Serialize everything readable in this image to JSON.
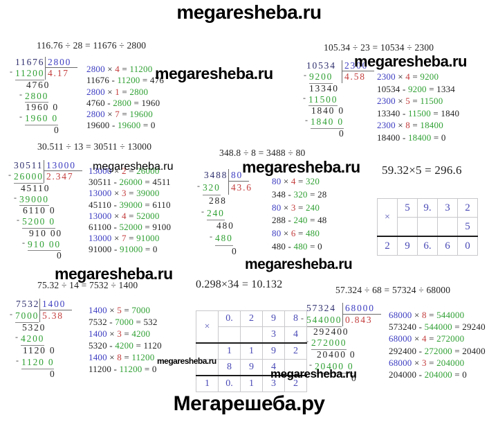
{
  "titles": {
    "top": "megaresheba.ru",
    "bottom": "Мегарешеба.ру"
  },
  "mult_sign": "×",
  "colors": {
    "dividend": "#2e2e6e",
    "divisor_blue": "#3c3cc2",
    "quotient_red": "#c43c3c",
    "step_green": "#2fa033",
    "text_black": "#222222",
    "grid_digit_blue": "#4848b6",
    "grid_border": "#c8c8cc",
    "bracket_line": "#6a6a6a"
  },
  "divisions": [
    {
      "id": "p1",
      "name": "division-116.76-by-28",
      "equation": "116.76 ÷ 28 = 11676 ÷ 2800",
      "dividend": "11676",
      "divisor": "2800",
      "sub1": "11200",
      "quotient": "4.17",
      "dml": 14,
      "mml": 6,
      "rows": [
        {
          "t": "4760",
          "ml": 30
        },
        {
          "t": "2800",
          "m": 1,
          "g": 1,
          "u": 1,
          "ml": 20
        },
        {
          "t": "1960 0",
          "ml": 29
        },
        {
          "t": "1960 0",
          "m": 1,
          "g": 1,
          "u": 1,
          "ml": 20
        },
        {
          "t": "0",
          "ml": 70
        }
      ],
      "notes": [
        {
          "k": "m",
          "a": "2800",
          "b": "4",
          "c": "11200"
        },
        {
          "k": "s",
          "a": "11676",
          "b": "11200",
          "c": "476"
        },
        {
          "k": "m",
          "a": "2800",
          "b": "1",
          "c": "2800"
        },
        {
          "k": "s",
          "a": "4760",
          "b": "2800",
          "c": "1960"
        },
        {
          "k": "m",
          "a": "2800",
          "b": "7",
          "c": "19600"
        },
        {
          "k": "s",
          "a": "19600",
          "b": "19600",
          "c": "0"
        }
      ]
    },
    {
      "id": "p2",
      "name": "division-105.34-by-23",
      "equation": "105.34 ÷ 23 = 10534 ÷ 2300",
      "dividend": "10534",
      "divisor": "2300",
      "sub1": "9200",
      "quotient": "4.58",
      "dml": 8,
      "mml": 4,
      "rows": [
        {
          "t": "13340",
          "ml": 12
        },
        {
          "t": "11500",
          "m": 1,
          "g": 1,
          "u": 1,
          "ml": 3
        },
        {
          "t": "1840 0",
          "ml": 15
        },
        {
          "t": "1840 0",
          "m": 1,
          "g": 1,
          "u": 1,
          "ml": 6
        },
        {
          "t": "0",
          "ml": 55
        }
      ],
      "notes": [
        {
          "k": "m",
          "a": "2300",
          "b": "4",
          "c": "9200"
        },
        {
          "k": "s",
          "a": "10534",
          "b": "9200",
          "c": "1334"
        },
        {
          "k": "m",
          "a": "2300",
          "b": "5",
          "c": "11500"
        },
        {
          "k": "s",
          "a": "13340",
          "b": "11500",
          "c": "1840"
        },
        {
          "k": "m",
          "a": "2300",
          "b": "8",
          "c": "18400"
        },
        {
          "k": "s",
          "a": "18400",
          "b": "18400",
          "c": "0"
        }
      ]
    },
    {
      "id": "p3",
      "name": "division-30.511-by-13",
      "equation": "30.511 ÷ 13 = 30511 ÷ 13000",
      "dividend": "30511",
      "divisor": "13000",
      "sub1": "26000",
      "quotient": "2.347",
      "dml": 12,
      "mml": 4,
      "rows": [
        {
          "t": "45110",
          "ml": 22
        },
        {
          "t": "39000",
          "m": 1,
          "g": 1,
          "u": 1,
          "ml": 12
        },
        {
          "t": "6110 0",
          "ml": 25
        },
        {
          "t": "5200 0",
          "m": 1,
          "g": 1,
          "u": 1,
          "ml": 16
        },
        {
          "t": "910 00",
          "ml": 34
        },
        {
          "t": "910 00",
          "m": 1,
          "g": 1,
          "u": 1,
          "ml": 24
        },
        {
          "t": "0",
          "ml": 74
        }
      ],
      "notes": [
        {
          "k": "m",
          "a": "13000",
          "b": "2",
          "c": "26000"
        },
        {
          "k": "s",
          "a": "30511",
          "b": "26000",
          "c": "4511"
        },
        {
          "k": "m",
          "a": "13000",
          "b": "3",
          "c": "39000"
        },
        {
          "k": "s",
          "a": "45110",
          "b": "39000",
          "c": "6110"
        },
        {
          "k": "m",
          "a": "13000",
          "b": "4",
          "c": "52000"
        },
        {
          "k": "s",
          "a": "61100",
          "b": "52000",
          "c": "9100"
        },
        {
          "k": "m",
          "a": "13000",
          "b": "7",
          "c": "91000"
        },
        {
          "k": "s",
          "a": "91000",
          "b": "91000",
          "c": "0"
        }
      ]
    },
    {
      "id": "p4",
      "name": "division-348.8-by-8",
      "equation": "348.8 ÷ 8 = 3488 ÷ 80",
      "dividend": "3488",
      "divisor": "80",
      "sub1": "320",
      "quotient": "43.6",
      "dml": 20,
      "mml": 10,
      "rows": [
        {
          "t": "288",
          "ml": 27
        },
        {
          "t": "240",
          "m": 1,
          "g": 1,
          "u": 1,
          "ml": 16
        },
        {
          "t": "480",
          "ml": 38
        },
        {
          "t": "480",
          "m": 1,
          "g": 1,
          "u": 1,
          "ml": 28
        },
        {
          "t": "0",
          "ml": 60
        }
      ],
      "notes": [
        {
          "k": "m",
          "a": "80",
          "b": "4",
          "c": "320"
        },
        {
          "k": "s",
          "a": "348",
          "b": "320",
          "c": "28"
        },
        {
          "k": "m",
          "a": "80",
          "b": "3",
          "c": "240"
        },
        {
          "k": "s",
          "a": "288",
          "b": "240",
          "c": "48"
        },
        {
          "k": "m",
          "a": "80",
          "b": "6",
          "c": "480"
        },
        {
          "k": "s",
          "a": "480",
          "b": "480",
          "c": "0"
        }
      ]
    },
    {
      "id": "p6",
      "name": "division-75.32-by-14",
      "equation": "75.32 ÷ 14 = 7532 ÷ 1400",
      "dividend": "7532",
      "divisor": "1400",
      "sub1": "7000",
      "quotient": "5.38",
      "dml": 15,
      "mml": 6,
      "rows": [
        {
          "t": "5320",
          "ml": 24
        },
        {
          "t": "4200",
          "m": 1,
          "g": 1,
          "u": 1,
          "ml": 14
        },
        {
          "t": "1120 0",
          "ml": 25
        },
        {
          "t": "1120 0",
          "m": 1,
          "g": 1,
          "u": 1,
          "ml": 15
        },
        {
          "t": "0",
          "ml": 64
        }
      ],
      "notes": [
        {
          "k": "m",
          "a": "1400",
          "b": "5",
          "c": "7000"
        },
        {
          "k": "s",
          "a": "7532",
          "b": "7000",
          "c": "532"
        },
        {
          "k": "m",
          "a": "1400",
          "b": "3",
          "c": "4200"
        },
        {
          "k": "s",
          "a": "5320",
          "b": "4200",
          "c": "1120"
        },
        {
          "k": "m",
          "a": "1400",
          "b": "8",
          "c": "11200"
        },
        {
          "k": "s",
          "a": "11200",
          "b": "11200",
          "c": "0"
        }
      ]
    },
    {
      "id": "p8",
      "name": "division-57.324-by-68",
      "equation": "57.324 ÷ 68 = 57324 ÷ 68000",
      "dividend": "57324",
      "divisor": "68000",
      "sub1": "544000",
      "quotient": "0.843",
      "dml": 8,
      "mml": 0,
      "rows": [
        {
          "t": "292400",
          "ml": 18
        },
        {
          "t": "272000",
          "m": 1,
          "g": 1,
          "u": 1,
          "ml": 7
        },
        {
          "t": "20400 0",
          "ml": 23
        },
        {
          "t": "20400 0",
          "m": 1,
          "g": 1,
          "u": 1,
          "ml": 12
        },
        {
          "t": "0",
          "ml": 73
        }
      ],
      "notes": [
        {
          "k": "m",
          "a": "68000",
          "b": "8",
          "c": "544000"
        },
        {
          "k": "s",
          "a": "573240",
          "b": "544000",
          "c": "29240"
        },
        {
          "k": "m",
          "a": "68000",
          "b": "4",
          "c": "272000"
        },
        {
          "k": "s",
          "a": "292400",
          "b": "272000",
          "c": "20400"
        },
        {
          "k": "m",
          "a": "68000",
          "b": "3",
          "c": "204000"
        },
        {
          "k": "s",
          "a": "204000",
          "b": "204000",
          "c": "0"
        }
      ]
    }
  ],
  "multiplications": [
    {
      "id": "m1",
      "name": "multiplication-59.32-by-5",
      "equation": "59.32×5 = 296.6",
      "cross_span": 2,
      "rows": [
        {
          "cells": [
            "5",
            "9.",
            "3",
            "2"
          ]
        },
        {
          "cells": [
            "",
            "",
            "",
            "5"
          ]
        },
        {
          "thick": true,
          "cells": [
            "2",
            "9",
            "6.",
            "6",
            "0"
          ]
        }
      ]
    },
    {
      "id": "m2",
      "name": "multiplication-0.298-by-34",
      "equation": "0.298×34 = 10.132",
      "cross_span": 2,
      "rows": [
        {
          "cells": [
            "0.",
            "2",
            "9",
            "8"
          ]
        },
        {
          "cells": [
            "",
            "",
            "3",
            "4"
          ]
        },
        {
          "thick": true,
          "cells": [
            "",
            "1",
            "1",
            "9",
            "2"
          ]
        },
        {
          "cells": [
            "",
            "8",
            "9",
            "4",
            ""
          ]
        },
        {
          "thick": true,
          "cells": [
            "1",
            "0.",
            "1",
            "3",
            "2"
          ]
        }
      ]
    }
  ],
  "watermarks": [
    {
      "id": "w1",
      "text": "megaresheba.ru"
    },
    {
      "id": "w2",
      "text": "megaresheba.ru"
    },
    {
      "id": "w3",
      "text": "megaresheba.ru"
    },
    {
      "id": "w4",
      "text": "megaresheba.ru"
    },
    {
      "id": "w5",
      "text": "megaresheba.ru"
    },
    {
      "id": "w6",
      "text": "megaresheba.ru"
    },
    {
      "id": "w7",
      "text": "megaresheba.ru"
    },
    {
      "id": "w8",
      "text": "megaresheba.ru"
    }
  ]
}
